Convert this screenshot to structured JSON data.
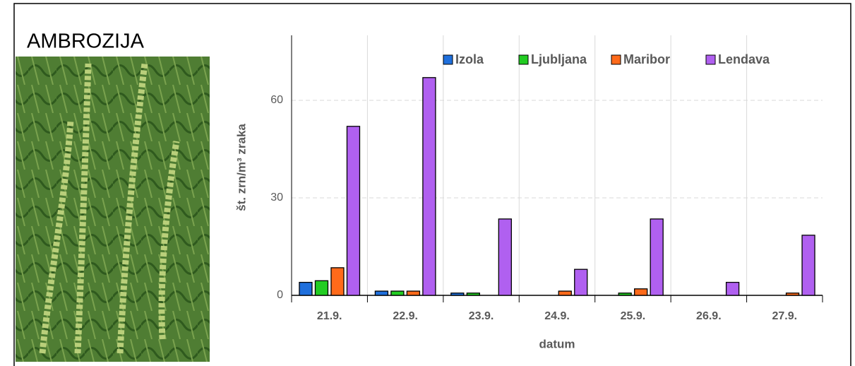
{
  "panel_title": "AMBROZIJA",
  "chart_data": {
    "type": "bar",
    "categories": [
      "21.9.",
      "22.9.",
      "23.9.",
      "24.9.",
      "25.9.",
      "26.9.",
      "27.9."
    ],
    "series": [
      {
        "name": "Izola",
        "color": "#1f6fdc",
        "values": [
          4,
          1.3,
          0.7,
          0,
          0,
          0,
          0
        ]
      },
      {
        "name": "Ljubljana",
        "color": "#22cc22",
        "values": [
          4.5,
          1.3,
          0.7,
          0,
          0.7,
          0,
          0
        ]
      },
      {
        "name": "Maribor",
        "color": "#ff6a1a",
        "values": [
          8.5,
          1.3,
          0,
          1.3,
          2,
          0,
          0.7
        ]
      },
      {
        "name": "Lendava",
        "color": "#b060f0",
        "values": [
          52,
          67,
          23.5,
          8,
          23.5,
          4,
          18.5
        ]
      }
    ],
    "ylabel": "št. zrn/m³ zraka",
    "xlabel": "datum",
    "ylim": [
      0,
      80
    ],
    "yticks": [
      0,
      30,
      60
    ],
    "grid": true,
    "legend": "top"
  }
}
